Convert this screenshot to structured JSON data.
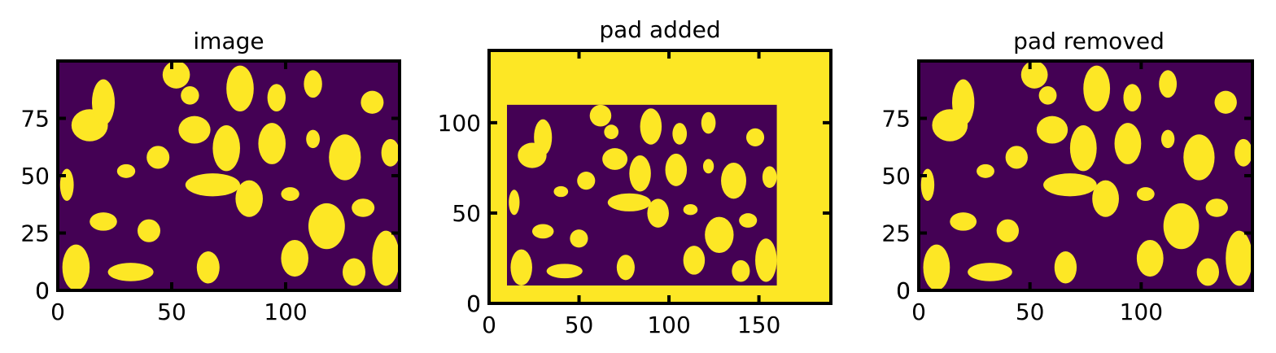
{
  "colors": {
    "low": "#440154",
    "high": "#fde725",
    "axis": "#000000"
  },
  "chart_data": [
    {
      "type": "heatmap",
      "title": "image",
      "xlabel": "",
      "ylabel": "",
      "xlim": [
        0,
        150
      ],
      "ylim": [
        0,
        100
      ],
      "xticks": [
        0,
        50,
        100
      ],
      "yticks": [
        0,
        25,
        50,
        75
      ],
      "grid": false,
      "data_description_values": {
        "width": 150,
        "height": 100,
        "binary_values": [
          0,
          1
        ]
      }
    },
    {
      "type": "heatmap",
      "title": "pad added",
      "xlabel": "",
      "ylabel": "",
      "xlim": [
        0,
        190
      ],
      "ylim": [
        0,
        140
      ],
      "xticks": [
        0,
        50,
        100,
        150
      ],
      "yticks": [
        0,
        50,
        100
      ],
      "grid": false,
      "data_description_values": {
        "width": 190,
        "height": 140,
        "binary_values": [
          0,
          1
        ],
        "inner_region_x": [
          10,
          160
        ],
        "inner_region_y": [
          10,
          110
        ]
      }
    },
    {
      "type": "heatmap",
      "title": "pad removed",
      "xlabel": "",
      "ylabel": "",
      "xlim": [
        0,
        150
      ],
      "ylim": [
        0,
        100
      ],
      "xticks": [
        0,
        50,
        100
      ],
      "yticks": [
        0,
        25,
        50,
        75
      ],
      "grid": false,
      "data_description_values": {
        "width": 150,
        "height": 100,
        "binary_values": [
          0,
          1
        ]
      }
    }
  ]
}
